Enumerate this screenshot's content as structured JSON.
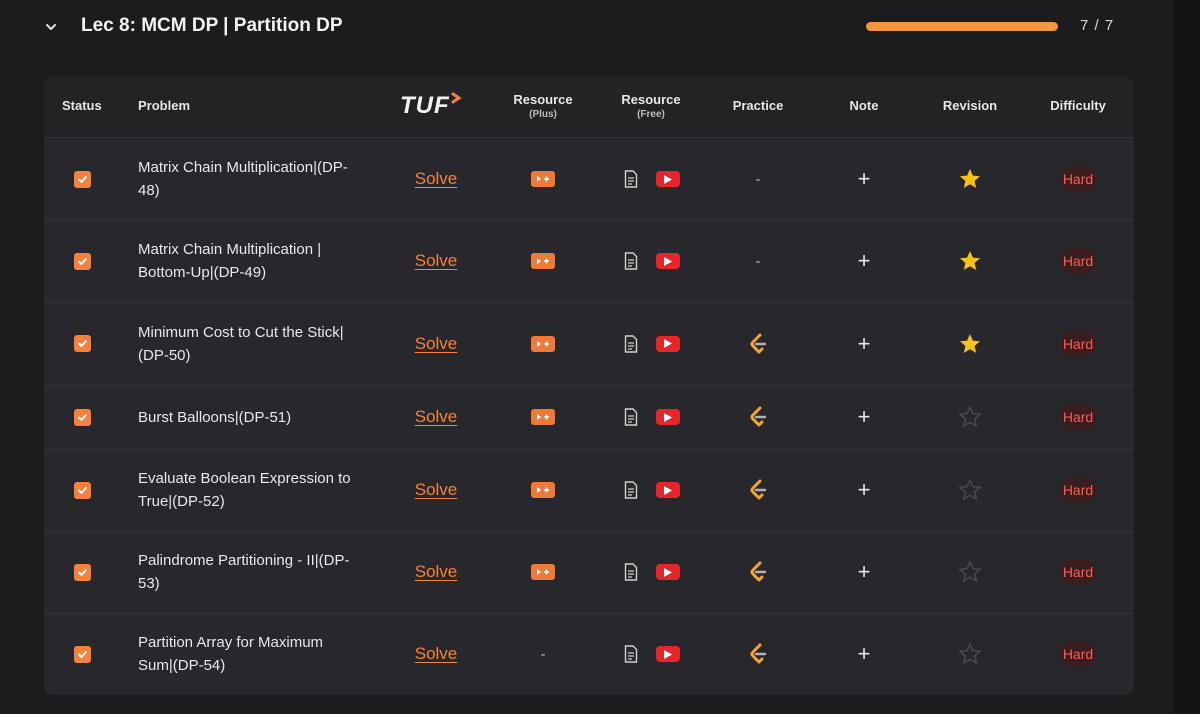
{
  "section": {
    "title": "Lec 8: MCM DP | Partition DP",
    "progress_text": "7 / 7",
    "progress_fraction": 1.0,
    "accent_color": "#f6963b"
  },
  "table": {
    "headers": {
      "status": "Status",
      "problem": "Problem",
      "tuf_logo": "TUF",
      "resource_plus": "Resource",
      "resource_plus_sub": "(Plus)",
      "resource_free": "Resource",
      "resource_free_sub": "(Free)",
      "practice": "Practice",
      "note": "Note",
      "revision": "Revision",
      "difficulty": "Difficulty"
    },
    "rows": [
      {
        "problem_line1": "Matrix Chain Multiplication|(DP-",
        "problem_line2": "48)",
        "solve": "Solve",
        "has_plus_resource": true,
        "practice": "-",
        "note": "+",
        "revision_starred": true,
        "difficulty": "Hard"
      },
      {
        "problem_line1": "Matrix Chain Multiplication |",
        "problem_line2": "Bottom-Up|(DP-49)",
        "solve": "Solve",
        "has_plus_resource": true,
        "practice": "-",
        "note": "+",
        "revision_starred": true,
        "difficulty": "Hard"
      },
      {
        "problem_line1": "Minimum Cost to Cut the Stick|",
        "problem_line2": "(DP-50)",
        "solve": "Solve",
        "has_plus_resource": true,
        "practice": "leetcode-icon",
        "note": "+",
        "revision_starred": true,
        "difficulty": "Hard"
      },
      {
        "problem_line1": "Burst Balloons|(DP-51)",
        "problem_line2": "",
        "solve": "Solve",
        "has_plus_resource": true,
        "practice": "leetcode-icon",
        "note": "+",
        "revision_starred": false,
        "difficulty": "Hard"
      },
      {
        "problem_line1": "Evaluate Boolean Expression to",
        "problem_line2": "True|(DP-52)",
        "solve": "Solve",
        "has_plus_resource": true,
        "practice": "leetcode-icon",
        "note": "+",
        "revision_starred": false,
        "difficulty": "Hard"
      },
      {
        "problem_line1": "Palindrome Partitioning - II|(DP-",
        "problem_line2": "53)",
        "solve": "Solve",
        "has_plus_resource": true,
        "practice": "leetcode-icon",
        "note": "+",
        "revision_starred": false,
        "difficulty": "Hard"
      },
      {
        "problem_line1": "Partition Array for Maximum",
        "problem_line2": "Sum|(DP-54)",
        "solve": "Solve",
        "has_plus_resource": false,
        "plus_placeholder": "-",
        "practice": "leetcode-icon",
        "note": "+",
        "revision_starred": false,
        "difficulty": "Hard"
      }
    ]
  }
}
